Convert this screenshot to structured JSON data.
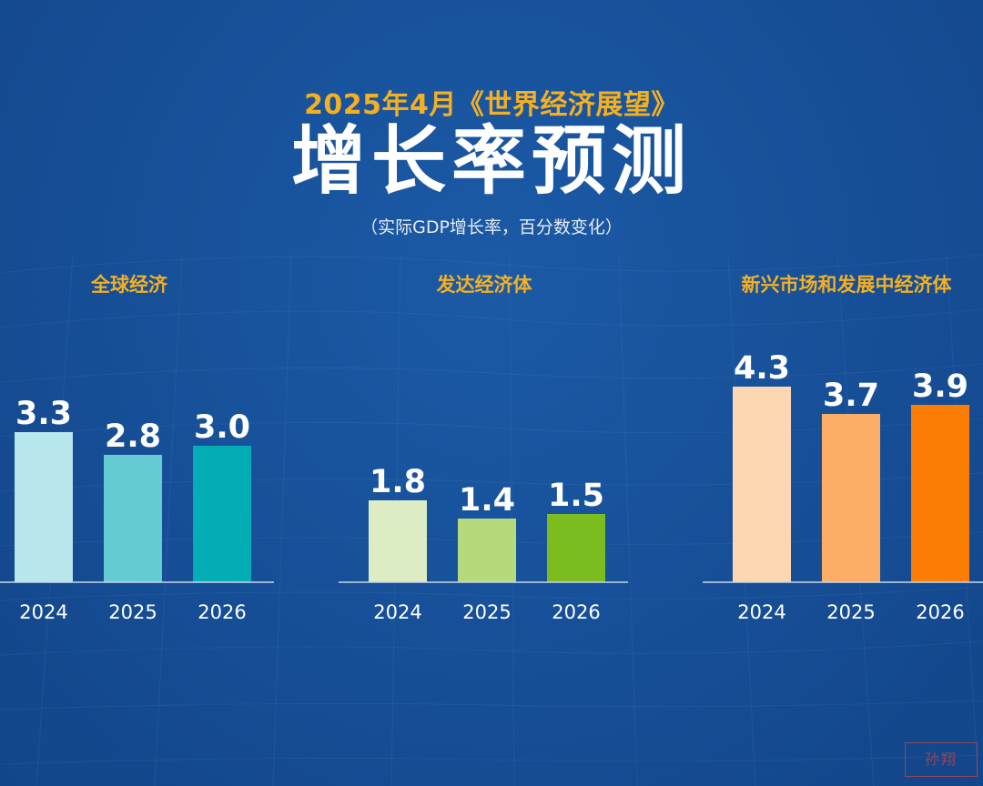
{
  "header": {
    "subtitle": "2025年4月《世界经济展望》",
    "title": "增长率预测",
    "unit_note": "（实际GDP增长率，百分数变化）"
  },
  "stamp_text": "孙翔",
  "chart_data": [
    {
      "type": "bar",
      "title": "全球经济",
      "categories": [
        "2024",
        "2025",
        "2026"
      ],
      "values": [
        3.3,
        2.8,
        3.0
      ],
      "value_labels": [
        "3.3",
        "2.8",
        "3.0"
      ],
      "colors": [
        "#b7e6ec",
        "#63cbd1",
        "#03adb5"
      ],
      "ylim": [
        0,
        5
      ],
      "grid": false,
      "legend": "none"
    },
    {
      "type": "bar",
      "title": "发达经济体",
      "categories": [
        "2024",
        "2025",
        "2026"
      ],
      "values": [
        1.8,
        1.4,
        1.5
      ],
      "value_labels": [
        "1.8",
        "1.4",
        "1.5"
      ],
      "colors": [
        "#dcedc3",
        "#b5d97b",
        "#7bbc1f"
      ],
      "ylim": [
        0,
        5
      ],
      "grid": false,
      "legend": "none"
    },
    {
      "type": "bar",
      "title": "新兴市场和发展中经济体",
      "categories": [
        "2024",
        "2025",
        "2026"
      ],
      "values": [
        4.3,
        3.7,
        3.9
      ],
      "value_labels": [
        "4.3",
        "3.7",
        "3.9"
      ],
      "colors": [
        "#fdd7b2",
        "#fdad66",
        "#fb7d05"
      ],
      "ylim": [
        0,
        5
      ],
      "grid": false,
      "legend": "none"
    }
  ]
}
